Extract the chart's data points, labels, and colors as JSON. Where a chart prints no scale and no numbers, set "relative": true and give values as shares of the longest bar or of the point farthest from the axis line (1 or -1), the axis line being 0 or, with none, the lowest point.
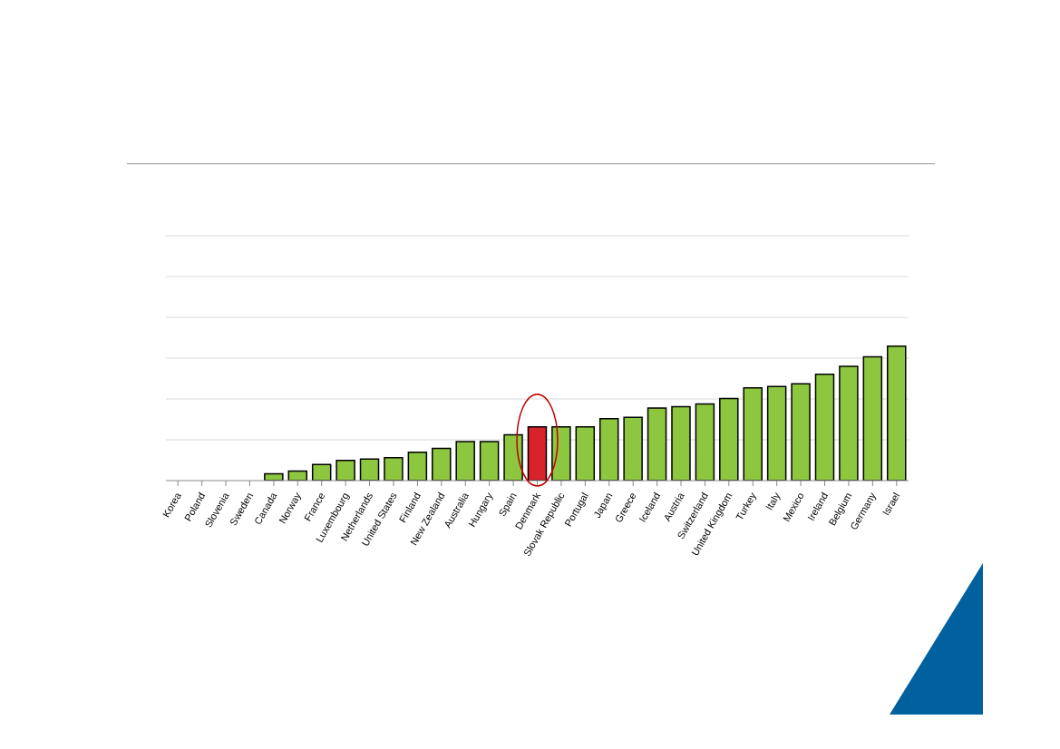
{
  "chart_data": {
    "type": "bar",
    "relative": true,
    "grid": "y",
    "categories": [
      "Korea",
      "Poland",
      "Slovenia",
      "Sweden",
      "Canada",
      "Norway",
      "France",
      "Luxembourg",
      "Netherlands",
      "United States",
      "Finland",
      "New Zealand",
      "Australia",
      "Hungary",
      "Spain",
      "Denmark",
      "Slovak Republic",
      "Portugal",
      "Japan",
      "Greece",
      "Iceland",
      "Austria",
      "Switzerland",
      "United Kingdom",
      "Turkey",
      "Italy",
      "Mexico",
      "Ireland",
      "Belgium",
      "Germany",
      "Israel"
    ],
    "values": [
      0,
      0,
      0,
      0,
      0.05,
      0.07,
      0.12,
      0.15,
      0.16,
      0.17,
      0.21,
      0.24,
      0.29,
      0.29,
      0.34,
      0.4,
      0.4,
      0.4,
      0.46,
      0.47,
      0.54,
      0.55,
      0.57,
      0.61,
      0.69,
      0.7,
      0.72,
      0.79,
      0.85,
      0.92,
      1
    ],
    "colors": [
      "#8dc63f",
      "#8dc63f",
      "#8dc63f",
      "#8dc63f",
      "#8dc63f",
      "#8dc63f",
      "#8dc63f",
      "#8dc63f",
      "#8dc63f",
      "#8dc63f",
      "#8dc63f",
      "#8dc63f",
      "#8dc63f",
      "#8dc63f",
      "#8dc63f",
      "#d9232a",
      "#8dc63f",
      "#8dc63f",
      "#8dc63f",
      "#8dc63f",
      "#8dc63f",
      "#8dc63f",
      "#8dc63f",
      "#8dc63f",
      "#8dc63f",
      "#8dc63f",
      "#8dc63f",
      "#8dc63f",
      "#8dc63f",
      "#8dc63f",
      "#8dc63f"
    ]
  }
}
